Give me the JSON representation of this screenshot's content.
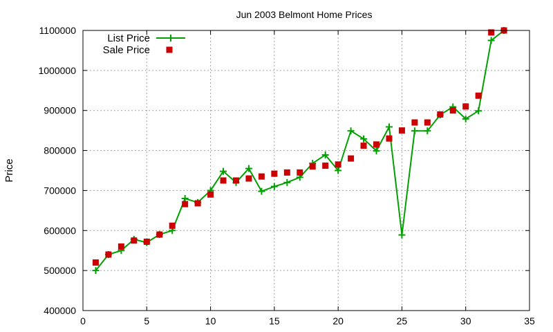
{
  "chart_data": {
    "type": "line",
    "title": "Jun 2003 Belmont Home Prices",
    "xlabel": "",
    "ylabel": "Price",
    "xlim": [
      0,
      35
    ],
    "ylim": [
      400000,
      1100000
    ],
    "x_ticks": [
      0,
      5,
      10,
      15,
      20,
      25,
      30,
      35
    ],
    "y_ticks": [
      400000,
      500000,
      600000,
      700000,
      800000,
      900000,
      1000000,
      1100000
    ],
    "grid": true,
    "legend_position": "top-left",
    "series": [
      {
        "name": "List Price",
        "style": "line+cross",
        "color": "#00a000",
        "points": [
          [
            1,
            500000
          ],
          [
            2,
            540000
          ],
          [
            3,
            550000
          ],
          [
            4,
            578000
          ],
          [
            5,
            570000
          ],
          [
            6,
            590000
          ],
          [
            7,
            600000
          ],
          [
            8,
            680000
          ],
          [
            9,
            670000
          ],
          [
            10,
            700000
          ],
          [
            11,
            748000
          ],
          [
            12,
            720000
          ],
          [
            13,
            755000
          ],
          [
            14,
            698000
          ],
          [
            15,
            710000
          ],
          [
            16,
            720000
          ],
          [
            17,
            733000
          ],
          [
            18,
            768000
          ],
          [
            19,
            789000
          ],
          [
            20,
            750000
          ],
          [
            21,
            849000
          ],
          [
            22,
            829000
          ],
          [
            23,
            799000
          ],
          [
            24,
            859000
          ],
          [
            25,
            589000
          ],
          [
            26,
            849000
          ],
          [
            27,
            849000
          ],
          [
            28,
            889000
          ],
          [
            29,
            909000
          ],
          [
            30,
            879000
          ],
          [
            31,
            899000
          ],
          [
            32,
            1075000
          ],
          [
            33,
            1100000
          ]
        ]
      },
      {
        "name": "Sale Price",
        "style": "square",
        "color": "#cc0000",
        "points": [
          [
            1,
            520000
          ],
          [
            2,
            540000
          ],
          [
            3,
            560000
          ],
          [
            4,
            575000
          ],
          [
            5,
            572000
          ],
          [
            6,
            590000
          ],
          [
            7,
            612000
          ],
          [
            8,
            666000
          ],
          [
            9,
            668000
          ],
          [
            10,
            690000
          ],
          [
            11,
            725000
          ],
          [
            12,
            725000
          ],
          [
            13,
            730000
          ],
          [
            14,
            735000
          ],
          [
            15,
            742000
          ],
          [
            16,
            745000
          ],
          [
            17,
            745000
          ],
          [
            18,
            760000
          ],
          [
            19,
            762000
          ],
          [
            20,
            765000
          ],
          [
            21,
            780000
          ],
          [
            22,
            812000
          ],
          [
            23,
            815000
          ],
          [
            24,
            830000
          ],
          [
            25,
            850000
          ],
          [
            26,
            870000
          ],
          [
            27,
            870000
          ],
          [
            28,
            890000
          ],
          [
            29,
            900000
          ],
          [
            30,
            910000
          ],
          [
            31,
            937000
          ],
          [
            32,
            1095000
          ],
          [
            33,
            1100000
          ]
        ]
      }
    ]
  }
}
